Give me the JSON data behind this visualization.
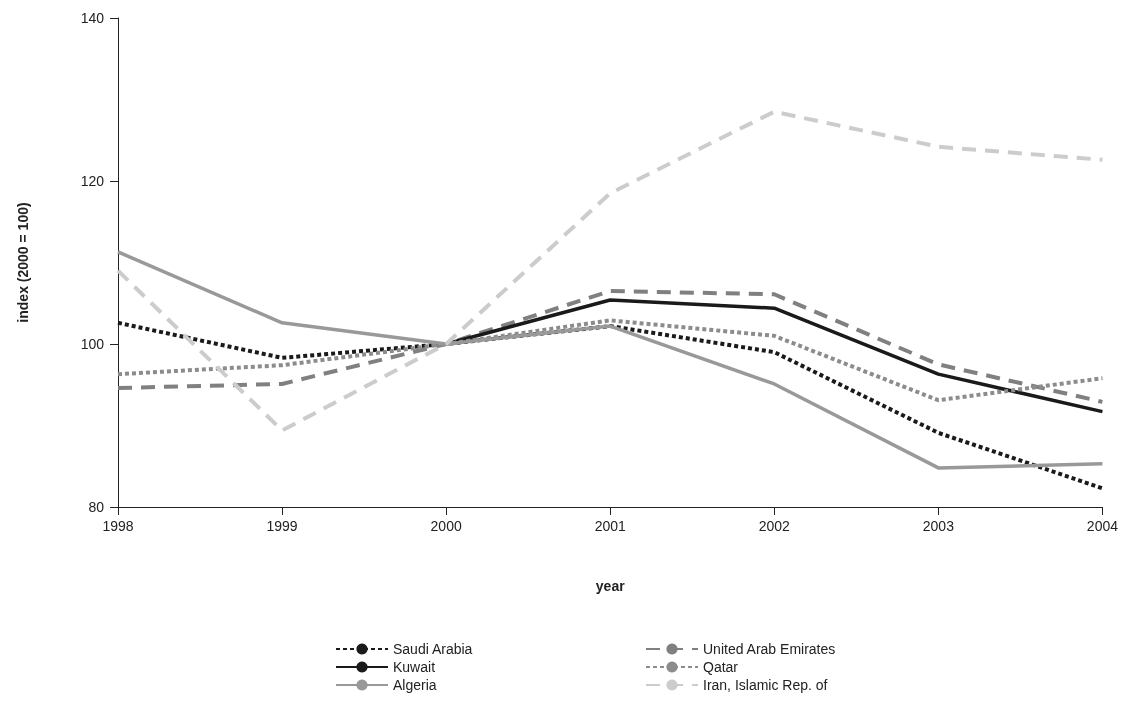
{
  "chart_data": {
    "type": "line",
    "xlabel": "year",
    "ylabel": "index (2000 = 100)",
    "categories": [
      "1998",
      "1999",
      "2000",
      "2001",
      "2002",
      "2003",
      "2004"
    ],
    "ylim": [
      80,
      140
    ],
    "yticks": [
      80,
      100,
      120,
      140
    ],
    "grid": false,
    "legend": "bottom",
    "marker": "none",
    "series": [
      {
        "name": "Saudi Arabia",
        "color": "#1a1a1a",
        "line_style": "dotted",
        "values": [
          102.6,
          98.3,
          100,
          102.2,
          99.0,
          89.1,
          82.3
        ]
      },
      {
        "name": "United Arab Emirates",
        "color": "#808080",
        "line_style": "dashed",
        "values": [
          94.6,
          95.1,
          100,
          106.5,
          106.1,
          97.5,
          92.9
        ]
      },
      {
        "name": "Kuwait",
        "color": "#1a1a1a",
        "line_style": "solid",
        "values": [
          null,
          null,
          100,
          105.4,
          104.4,
          96.3,
          91.7
        ]
      },
      {
        "name": "Qatar",
        "color": "#8c8c8c",
        "line_style": "dotted",
        "values": [
          96.3,
          97.4,
          100,
          102.9,
          101.0,
          93.1,
          95.8
        ]
      },
      {
        "name": "Algeria",
        "color": "#999999",
        "line_style": "solid",
        "values": [
          111.3,
          102.6,
          100,
          102.2,
          95.1,
          84.8,
          85.3
        ]
      },
      {
        "name": "Iran, Islamic Rep. of",
        "color": "#cccccc",
        "line_style": "dashed",
        "values": [
          109.0,
          89.4,
          100,
          118.5,
          128.5,
          124.2,
          122.6
        ]
      }
    ]
  }
}
